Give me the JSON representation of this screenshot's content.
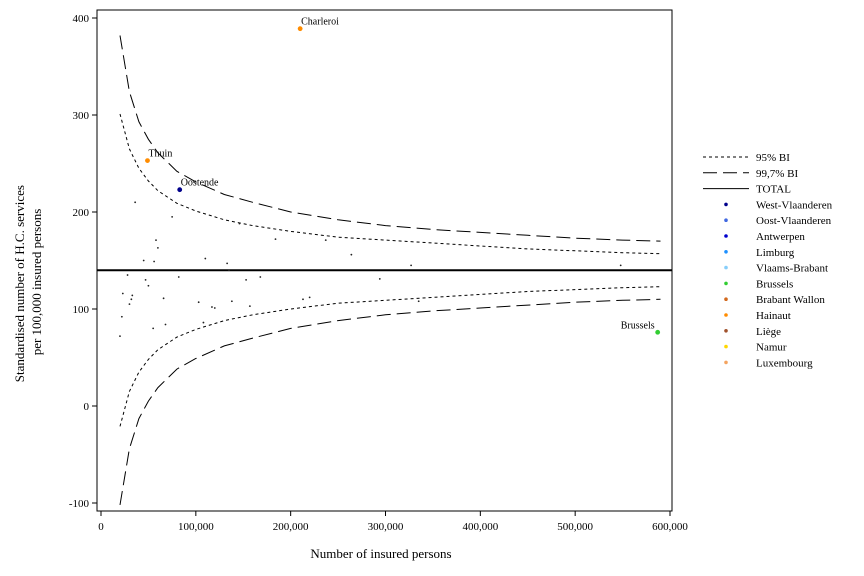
{
  "chart_data": {
    "type": "scatter",
    "title": "",
    "xlabel": "Number of insured persons",
    "ylabel_lines": [
      "Standardised number of H.C. services",
      "per 100,000 insured persons"
    ],
    "xlim": [
      0,
      600000
    ],
    "ylim": [
      -100,
      400
    ],
    "x_ticks": [
      0,
      100000,
      200000,
      300000,
      400000,
      500000,
      600000
    ],
    "x_tick_labels": [
      "0",
      "100,000",
      "200,000",
      "300,000",
      "400,000",
      "500,000",
      "600,000"
    ],
    "y_ticks": [
      -100,
      0,
      100,
      200,
      300,
      400
    ],
    "y_tick_labels": [
      "-100",
      "0",
      "100",
      "200",
      "300",
      "400"
    ],
    "grid": false,
    "legend_placement": "right",
    "legend": [
      {
        "label": "95% BI",
        "kind": "line",
        "style": "dotted"
      },
      {
        "label": "99,7% BI",
        "kind": "line",
        "style": "dashed"
      },
      {
        "label": "TOTAL",
        "kind": "line",
        "style": "solid"
      },
      {
        "label": "West-Vlaanderen",
        "kind": "point",
        "color": "#00008b"
      },
      {
        "label": "Oost-Vlaanderen",
        "kind": "point",
        "color": "#4169e1"
      },
      {
        "label": "Antwerpen",
        "kind": "point",
        "color": "#0000cd"
      },
      {
        "label": "Limburg",
        "kind": "point",
        "color": "#1e90ff"
      },
      {
        "label": "Vlaams-Brabant",
        "kind": "point",
        "color": "#87cefa"
      },
      {
        "label": "Brussels",
        "kind": "point",
        "color": "#32cd32"
      },
      {
        "label": "Brabant Wallon",
        "kind": "point",
        "color": "#d2691e"
      },
      {
        "label": "Hainaut",
        "kind": "point",
        "color": "#ff8c00"
      },
      {
        "label": "Liège",
        "kind": "point",
        "color": "#a0522d"
      },
      {
        "label": "Namur",
        "kind": "point",
        "color": "#ffd700"
      },
      {
        "label": "Luxembourg",
        "kind": "point",
        "color": "#f4a460"
      }
    ],
    "total_line": 140,
    "control_limits": {
      "x": [
        20000,
        30000,
        40000,
        50000,
        60000,
        80000,
        100000,
        130000,
        160000,
        200000,
        250000,
        300000,
        350000,
        400000,
        450000,
        500000,
        550000,
        590000
      ],
      "ci95_upper": [
        301,
        265,
        245,
        232,
        222,
        209,
        201,
        192,
        186,
        180,
        174,
        171,
        168,
        165,
        162,
        160,
        158,
        157
      ],
      "ci95_lower": [
        -21,
        15,
        35,
        48,
        58,
        71,
        79,
        88,
        94,
        100,
        106,
        109,
        112,
        115,
        118,
        120,
        122,
        123
      ],
      "ci997_upper": [
        382,
        324,
        293,
        275,
        261,
        242,
        231,
        218,
        210,
        200,
        192,
        186,
        182,
        179,
        176,
        173,
        171,
        170
      ],
      "ci997_lower": [
        -102,
        -44,
        -13,
        5,
        19,
        38,
        49,
        62,
        70,
        80,
        88,
        94,
        98,
        101,
        104,
        107,
        109,
        110
      ]
    },
    "labeled_points": [
      {
        "label": "Charleroi",
        "x": 210000,
        "y": 389,
        "color": "#ff8c00",
        "anchor": "start"
      },
      {
        "label": "Thuin",
        "x": 49000,
        "y": 253,
        "color": "#ff8c00",
        "anchor": "start"
      },
      {
        "label": "Oostende",
        "x": 83000,
        "y": 223,
        "color": "#00008b",
        "anchor": "start"
      },
      {
        "label": "Brussels",
        "x": 587000,
        "y": 76,
        "color": "#32cd32",
        "anchor": "end"
      }
    ],
    "points": [
      {
        "x": 20000,
        "y": 72
      },
      {
        "x": 22000,
        "y": 92
      },
      {
        "x": 23000,
        "y": 116
      },
      {
        "x": 28000,
        "y": 135
      },
      {
        "x": 30000,
        "y": 105
      },
      {
        "x": 32000,
        "y": 110
      },
      {
        "x": 33000,
        "y": 114
      },
      {
        "x": 36000,
        "y": 210
      },
      {
        "x": 45000,
        "y": 150
      },
      {
        "x": 47000,
        "y": 130
      },
      {
        "x": 50000,
        "y": 124
      },
      {
        "x": 55000,
        "y": 80
      },
      {
        "x": 56000,
        "y": 149
      },
      {
        "x": 58000,
        "y": 171
      },
      {
        "x": 60000,
        "y": 163
      },
      {
        "x": 66000,
        "y": 111
      },
      {
        "x": 68000,
        "y": 84
      },
      {
        "x": 75000,
        "y": 195
      },
      {
        "x": 82000,
        "y": 133
      },
      {
        "x": 103000,
        "y": 107
      },
      {
        "x": 108000,
        "y": 86
      },
      {
        "x": 110000,
        "y": 152
      },
      {
        "x": 117000,
        "y": 102
      },
      {
        "x": 120000,
        "y": 101
      },
      {
        "x": 133000,
        "y": 147
      },
      {
        "x": 135000,
        "y": 140
      },
      {
        "x": 138000,
        "y": 108
      },
      {
        "x": 146000,
        "y": 188
      },
      {
        "x": 153000,
        "y": 130
      },
      {
        "x": 157000,
        "y": 103
      },
      {
        "x": 168000,
        "y": 133
      },
      {
        "x": 184000,
        "y": 172
      },
      {
        "x": 213000,
        "y": 110
      },
      {
        "x": 220000,
        "y": 112
      },
      {
        "x": 237000,
        "y": 171
      },
      {
        "x": 264000,
        "y": 156
      },
      {
        "x": 294000,
        "y": 131
      },
      {
        "x": 327000,
        "y": 145
      },
      {
        "x": 335000,
        "y": 108
      },
      {
        "x": 548000,
        "y": 145
      }
    ]
  }
}
